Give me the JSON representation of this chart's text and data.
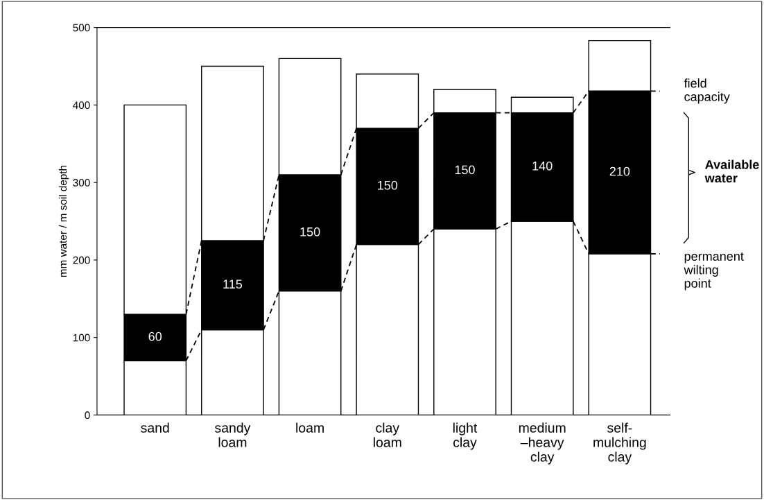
{
  "chart_data": {
    "type": "bar",
    "stacked": true,
    "ylabel": "mm water / m soil depth",
    "categories": [
      "sand",
      "sandy\nloam",
      "loam",
      "clay\nloam",
      "light\nclay",
      "medium\n–heavy\nclay",
      "self-\nmulching\nclay"
    ],
    "series": [
      {
        "color": "#ffffff",
        "values": [
          70,
          110,
          160,
          220,
          240,
          250,
          208
        ]
      },
      {
        "color": "#000000",
        "values": [
          60,
          115,
          150,
          150,
          150,
          140,
          210
        ],
        "value_labels": [
          "60",
          "115",
          "150",
          "150",
          "150",
          "140",
          "210"
        ]
      },
      {
        "color": "#ffffff",
        "values": [
          270,
          225,
          150,
          70,
          30,
          20,
          65
        ]
      }
    ],
    "line_style": "dashed",
    "ylim": [
      0,
      500
    ],
    "yticks": [
      0,
      100,
      200,
      300,
      400,
      500
    ],
    "grid": false,
    "legend": false,
    "annotations": [
      "field\ncapacity",
      "Available\nwater",
      "permanent\nwilting\npoint"
    ]
  }
}
